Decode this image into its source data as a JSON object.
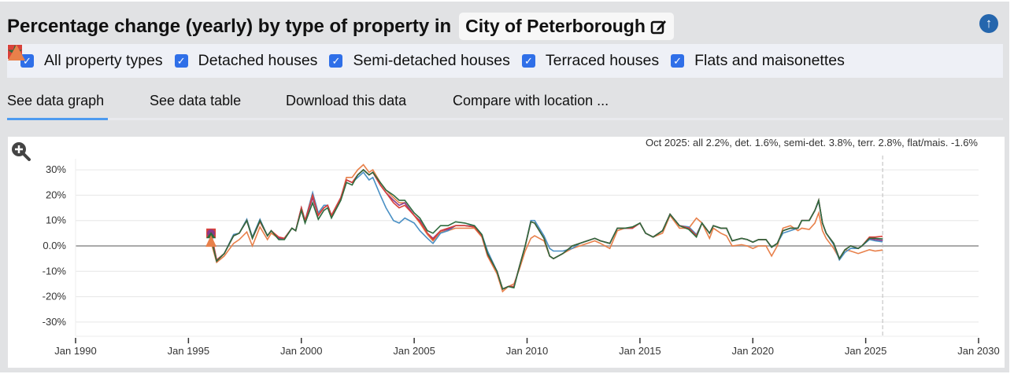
{
  "header": {
    "title": "Percentage change (yearly) by type of property in",
    "location": "City of Peterborough",
    "edit_icon": "pencil-square-icon",
    "scroll_top_icon": "arrow-up-circle-icon"
  },
  "legend": [
    {
      "label": "All property types",
      "marker": "circle",
      "color": "#8b3a8b",
      "checked": true
    },
    {
      "label": "Detached houses",
      "marker": "diamond",
      "color": "#4a90c4",
      "checked": true
    },
    {
      "label": "Semi-detached houses",
      "marker": "square",
      "color": "#d9413a",
      "checked": true
    },
    {
      "label": "Terraced houses",
      "marker": "star",
      "color": "#2e6b3e",
      "checked": true
    },
    {
      "label": "Flats and maisonettes",
      "marker": "triangle",
      "color": "#e8804a",
      "checked": true
    }
  ],
  "tabs": [
    {
      "label": "See data graph",
      "active": true
    },
    {
      "label": "See data table"
    },
    {
      "label": "Download this data"
    },
    {
      "label": "Compare with location ..."
    }
  ],
  "chart_data": {
    "type": "line",
    "summary": "Oct 2025: all 2.2%, det. 1.6%, semi-det. 3.8%, terr. 2.8%, flat/mais. -1.6%",
    "xlim": [
      "1990-01",
      "2030-01"
    ],
    "ylim": [
      -35,
      35
    ],
    "xticks": [
      "Jan 1990",
      "Jan 1995",
      "Jan 2000",
      "Jan 2005",
      "Jan 2010",
      "Jan 2015",
      "Jan 2020",
      "Jan 2025",
      "Jan 2030"
    ],
    "yticks": [
      "30%",
      "20%",
      "10%",
      "0.0%",
      "-10%",
      "-20%",
      "-30%"
    ],
    "ytick_values": [
      30,
      20,
      10,
      0,
      -10,
      -20,
      -30
    ],
    "grid": true,
    "marker_line": "2025-10",
    "x": [
      "1996-01",
      "1996-04",
      "1996-08",
      "1997-01",
      "1997-04",
      "1997-08",
      "1997-11",
      "1998-03",
      "1998-07",
      "1998-09",
      "1999-01",
      "1999-04",
      "1999-08",
      "1999-10",
      "2000-01",
      "2000-03",
      "2000-07",
      "2000-10",
      "2001-01",
      "2001-03",
      "2001-05",
      "2001-10",
      "2002-01",
      "2002-04",
      "2002-07",
      "2002-10",
      "2003-01",
      "2003-03",
      "2003-07",
      "2003-10",
      "2004-02",
      "2004-05",
      "2004-08",
      "2005-01",
      "2005-04",
      "2005-08",
      "2005-11",
      "2006-03",
      "2006-07",
      "2006-11",
      "2007-04",
      "2007-09",
      "2008-01",
      "2008-04",
      "2008-09",
      "2008-12",
      "2009-03",
      "2009-06",
      "2009-09",
      "2009-12",
      "2010-03",
      "2010-05",
      "2010-10",
      "2011-01",
      "2011-03",
      "2011-08",
      "2012-01",
      "2012-05",
      "2012-09",
      "2013-01",
      "2013-04",
      "2013-09",
      "2014-01",
      "2014-05",
      "2014-09",
      "2015-01",
      "2015-04",
      "2015-08",
      "2016-01",
      "2016-05",
      "2016-10",
      "2017-03",
      "2017-07",
      "2017-10",
      "2018-02",
      "2018-04",
      "2018-08",
      "2018-11",
      "2019-02",
      "2019-07",
      "2019-10",
      "2020-01",
      "2020-04",
      "2020-08",
      "2020-11",
      "2021-02",
      "2021-05",
      "2021-09",
      "2022-01",
      "2022-03",
      "2022-07",
      "2022-10",
      "2022-12",
      "2023-02",
      "2023-04",
      "2023-08",
      "2023-11",
      "2024-02",
      "2024-05",
      "2024-09",
      "2024-11",
      "2025-03",
      "2025-06",
      "2025-10"
    ],
    "series": [
      {
        "name": "Flats and maisonettes",
        "color": "#e8804a",
        "values": [
          1.5,
          -6.5,
          -4,
          1,
          2.5,
          5.5,
          0,
          7.5,
          2.5,
          5,
          3,
          3,
          7,
          6,
          15,
          10,
          19,
          12.5,
          15,
          16,
          12,
          19,
          27,
          27,
          30,
          32,
          29,
          30,
          25,
          22,
          19,
          17,
          17,
          12,
          9,
          4.5,
          2,
          5.5,
          6,
          7,
          7,
          7,
          3.5,
          -4,
          -11,
          -18,
          -16,
          -15,
          -9,
          -2,
          3,
          4,
          2,
          -4,
          -5,
          -3,
          -1,
          0,
          1,
          2,
          1,
          -1,
          6,
          7,
          7,
          9,
          5,
          3.5,
          5,
          12,
          7,
          7,
          11,
          9,
          3,
          7,
          5,
          4,
          0,
          0.5,
          0,
          -1,
          0,
          0,
          -4,
          0,
          7,
          8,
          6,
          7,
          6.5,
          9,
          13,
          6,
          3,
          -1,
          -5,
          -1.5,
          -2,
          -3,
          -2.5,
          -1.5,
          -2,
          -1.6
        ]
      },
      {
        "name": "Detached houses",
        "color": "#4a90c4",
        "values": [
          5.5,
          -5.5,
          -3,
          4.5,
          5,
          10.5,
          3.5,
          10.5,
          4,
          6,
          3,
          3,
          7,
          6,
          15,
          10,
          21,
          13,
          16,
          16,
          12,
          19,
          26,
          25,
          27,
          29,
          26,
          27,
          20,
          15,
          10,
          9,
          11,
          9,
          6,
          3,
          1,
          5,
          6,
          8,
          8,
          8,
          4.5,
          -2,
          -10,
          -17,
          -16,
          -16,
          -8,
          0,
          10,
          10,
          4,
          -1,
          -2,
          -2,
          -1,
          1,
          2,
          3,
          2,
          1,
          7,
          7,
          7,
          9,
          5,
          3.5,
          6,
          12.5,
          8,
          7.5,
          4.5,
          9,
          5,
          8,
          7,
          7,
          2,
          3,
          2.5,
          1.5,
          2.5,
          2.5,
          -0.5,
          1,
          5,
          6,
          7,
          10,
          10,
          14,
          17.5,
          9,
          5,
          0.5,
          -5.5,
          -2.5,
          -1,
          -1,
          0,
          2.5,
          2,
          1.6
        ]
      },
      {
        "name": "All property types",
        "color": "#8b3a8b",
        "values": [
          5,
          -6,
          -3,
          4,
          5,
          10,
          3,
          10,
          4,
          6,
          3,
          3,
          7,
          6,
          15,
          10,
          19,
          12,
          15,
          16,
          12,
          19,
          26,
          25,
          28,
          30,
          28,
          29,
          24,
          21,
          18,
          16,
          17,
          12,
          10,
          5,
          3,
          6,
          6.5,
          8,
          8,
          7.5,
          4,
          -3,
          -10,
          -17,
          -16,
          -16,
          -8,
          0,
          9.5,
          9,
          3,
          -4,
          -5,
          -3,
          0,
          1,
          2,
          3,
          2,
          1,
          7,
          7,
          7,
          9,
          5,
          3.5,
          6,
          12.5,
          8,
          7,
          4,
          9,
          5,
          8,
          7,
          7,
          2,
          3,
          2.5,
          1.5,
          2.5,
          2.5,
          -0.5,
          1,
          6,
          7,
          7,
          10,
          10,
          14,
          18,
          9,
          5,
          1,
          -5,
          -1.5,
          0,
          -1,
          0,
          3,
          2.5,
          2.2
        ]
      },
      {
        "name": "Semi-detached houses",
        "color": "#d9413a",
        "values": [
          5,
          -5.5,
          -3,
          4,
          5,
          10,
          3,
          9.5,
          4,
          6,
          3.5,
          3,
          7,
          6,
          15,
          10,
          20,
          12,
          15,
          16,
          12,
          19,
          26,
          25,
          28,
          30,
          28,
          29,
          24,
          21,
          17,
          15,
          16,
          12,
          9.5,
          5,
          2.5,
          6,
          7,
          8,
          8,
          7.5,
          4,
          -3.5,
          -10,
          -17,
          -16,
          -16,
          -8,
          0,
          9.5,
          9,
          3,
          -4,
          -5,
          -3,
          0,
          1,
          2,
          3,
          2,
          1,
          7,
          7,
          7,
          9,
          5,
          3.5,
          6,
          12.5,
          8,
          7,
          4,
          9,
          5,
          8,
          7,
          7,
          2,
          3,
          2.5,
          1.5,
          2.5,
          2.5,
          -0.5,
          1,
          6,
          7,
          7,
          10,
          10,
          14,
          18,
          9,
          5,
          1,
          -5,
          -1.5,
          0,
          -1,
          0,
          3.5,
          3.5,
          3.8
        ]
      },
      {
        "name": "Terraced houses",
        "color": "#2e6b3e",
        "values": [
          3,
          -6,
          -3,
          4,
          5,
          10,
          3,
          10,
          4,
          6,
          2.5,
          2.5,
          7,
          6,
          14,
          9,
          17,
          10.5,
          14,
          15,
          11,
          18,
          25,
          24,
          28,
          30,
          28,
          29,
          25,
          22,
          20,
          18,
          18,
          13,
          11,
          6,
          5,
          8,
          8,
          9.5,
          9,
          8,
          4.5,
          -3,
          -10,
          -17,
          -16,
          -16.5,
          -8,
          0,
          9.5,
          9,
          3,
          -4,
          -5,
          -3,
          0,
          1,
          2,
          3,
          2,
          1,
          7,
          7,
          7.5,
          9,
          5,
          3.5,
          6,
          12.5,
          8,
          6.5,
          3.5,
          9,
          5,
          8,
          7,
          7,
          2,
          3,
          2.5,
          1.5,
          2.5,
          2.5,
          -0.5,
          1,
          6,
          7,
          7,
          10,
          10,
          14,
          18,
          9,
          5,
          1,
          -5,
          -1.5,
          0,
          -1,
          0,
          3,
          3,
          2.8
        ]
      }
    ]
  }
}
